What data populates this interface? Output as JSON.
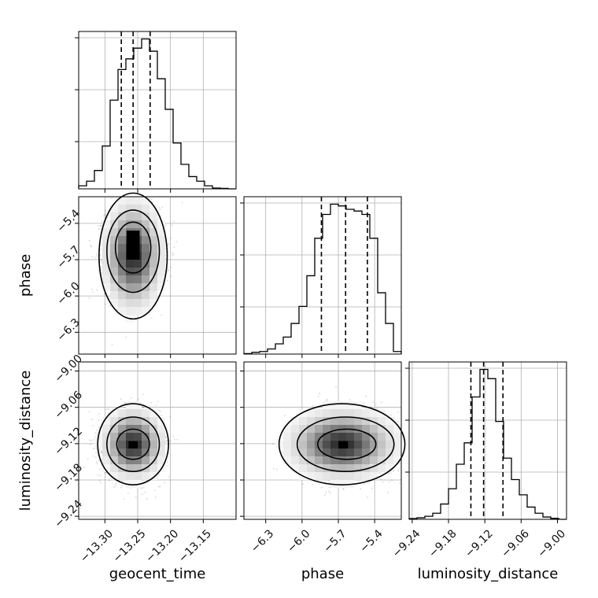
{
  "chart_data": {
    "type": "corner",
    "parameters": [
      "geocent_time",
      "phase",
      "luminosity_distance"
    ],
    "axes": {
      "geocent_time": {
        "label": "geocent_time",
        "range": [
          -13.34,
          -13.1
        ],
        "ticks": [
          -13.3,
          -13.25,
          -13.2,
          -13.15
        ],
        "tick_labels": [
          "−13.30",
          "−13.25",
          "−13.20",
          "−13.15"
        ],
        "quantiles": [
          -13.275,
          -13.257,
          -13.231
        ]
      },
      "phase": {
        "label": "phase",
        "range": [
          -6.48,
          -5.18
        ],
        "ticks": [
          -6.3,
          -6.0,
          -5.7,
          -5.4
        ],
        "tick_labels": [
          "−6.3",
          "−6.0",
          "−5.7",
          "−5.4"
        ],
        "quantiles": [
          -5.84,
          -5.64,
          -5.46
        ]
      },
      "luminosity_distance": {
        "label": "luminosity_distance",
        "range": [
          -9.245,
          -8.985
        ],
        "ticks": [
          -9.24,
          -9.18,
          -9.12,
          -9.06,
          -9.0
        ],
        "tick_labels": [
          "−9.24",
          "−9.18",
          "−9.12",
          "−9.06",
          "−9.00"
        ],
        "quantiles": [
          -9.143,
          -9.122,
          -9.09
        ]
      }
    },
    "histograms": {
      "geocent_time": [
        2,
        5,
        12,
        28,
        58,
        78,
        85,
        92,
        98,
        90,
        72,
        52,
        30,
        16,
        8,
        5,
        2,
        0.5,
        0.3,
        0
      ],
      "phase": [
        0.3,
        1,
        1.5,
        3,
        6,
        10,
        18,
        28,
        46,
        68,
        82,
        88,
        87,
        85,
        84,
        82,
        68,
        36,
        18,
        1.5
      ],
      "luminosity_distance": [
        0.5,
        1,
        2,
        4,
        10,
        20,
        36,
        50,
        80,
        98,
        92,
        64,
        40,
        26,
        16,
        8,
        4,
        1.5,
        0.6,
        0
      ]
    },
    "pairs": [
      {
        "x": "geocent_time",
        "y": "phase",
        "mean": [
          -13.257,
          -5.63
        ],
        "sigma": [
          0.018,
          0.16
        ],
        "contours": [
          {
            "cx": -13.257,
            "cy": -5.67,
            "rx": 0.052,
            "ry": 0.52
          },
          {
            "cx": -13.257,
            "cy": -5.63,
            "rx": 0.04,
            "ry": 0.34
          },
          {
            "cx": -13.257,
            "cy": -5.6,
            "rx": 0.027,
            "ry": 0.21
          },
          {
            "cx": -13.257,
            "cy": -5.58,
            "rx": 0.01,
            "ry": 0.12
          }
        ]
      },
      {
        "x": "geocent_time",
        "y": "luminosity_distance",
        "mean": [
          -13.257,
          -9.122
        ],
        "sigma": [
          0.018,
          0.022
        ],
        "contours": [
          {
            "cx": -13.257,
            "cy": -9.121,
            "rx": 0.054,
            "ry": 0.067
          },
          {
            "cx": -13.257,
            "cy": -9.121,
            "rx": 0.04,
            "ry": 0.045
          },
          {
            "cx": -13.257,
            "cy": -9.121,
            "rx": 0.025,
            "ry": 0.025
          },
          {
            "cx": -13.257,
            "cy": -9.122,
            "rx": 0.007,
            "ry": 0.006
          }
        ]
      },
      {
        "x": "phase",
        "y": "luminosity_distance",
        "mean": [
          -5.64,
          -9.122
        ],
        "sigma": [
          0.16,
          0.022
        ],
        "contours": [
          {
            "cx": -5.67,
            "cy": -9.121,
            "rx": 0.52,
            "ry": 0.067
          },
          {
            "cx": -5.64,
            "cy": -9.121,
            "rx": 0.4,
            "ry": 0.045
          },
          {
            "cx": -5.63,
            "cy": -9.121,
            "rx": 0.24,
            "ry": 0.025
          },
          {
            "cx": -5.66,
            "cy": -9.122,
            "rx": 0.04,
            "ry": 0.006
          }
        ]
      }
    ],
    "grid": true
  }
}
